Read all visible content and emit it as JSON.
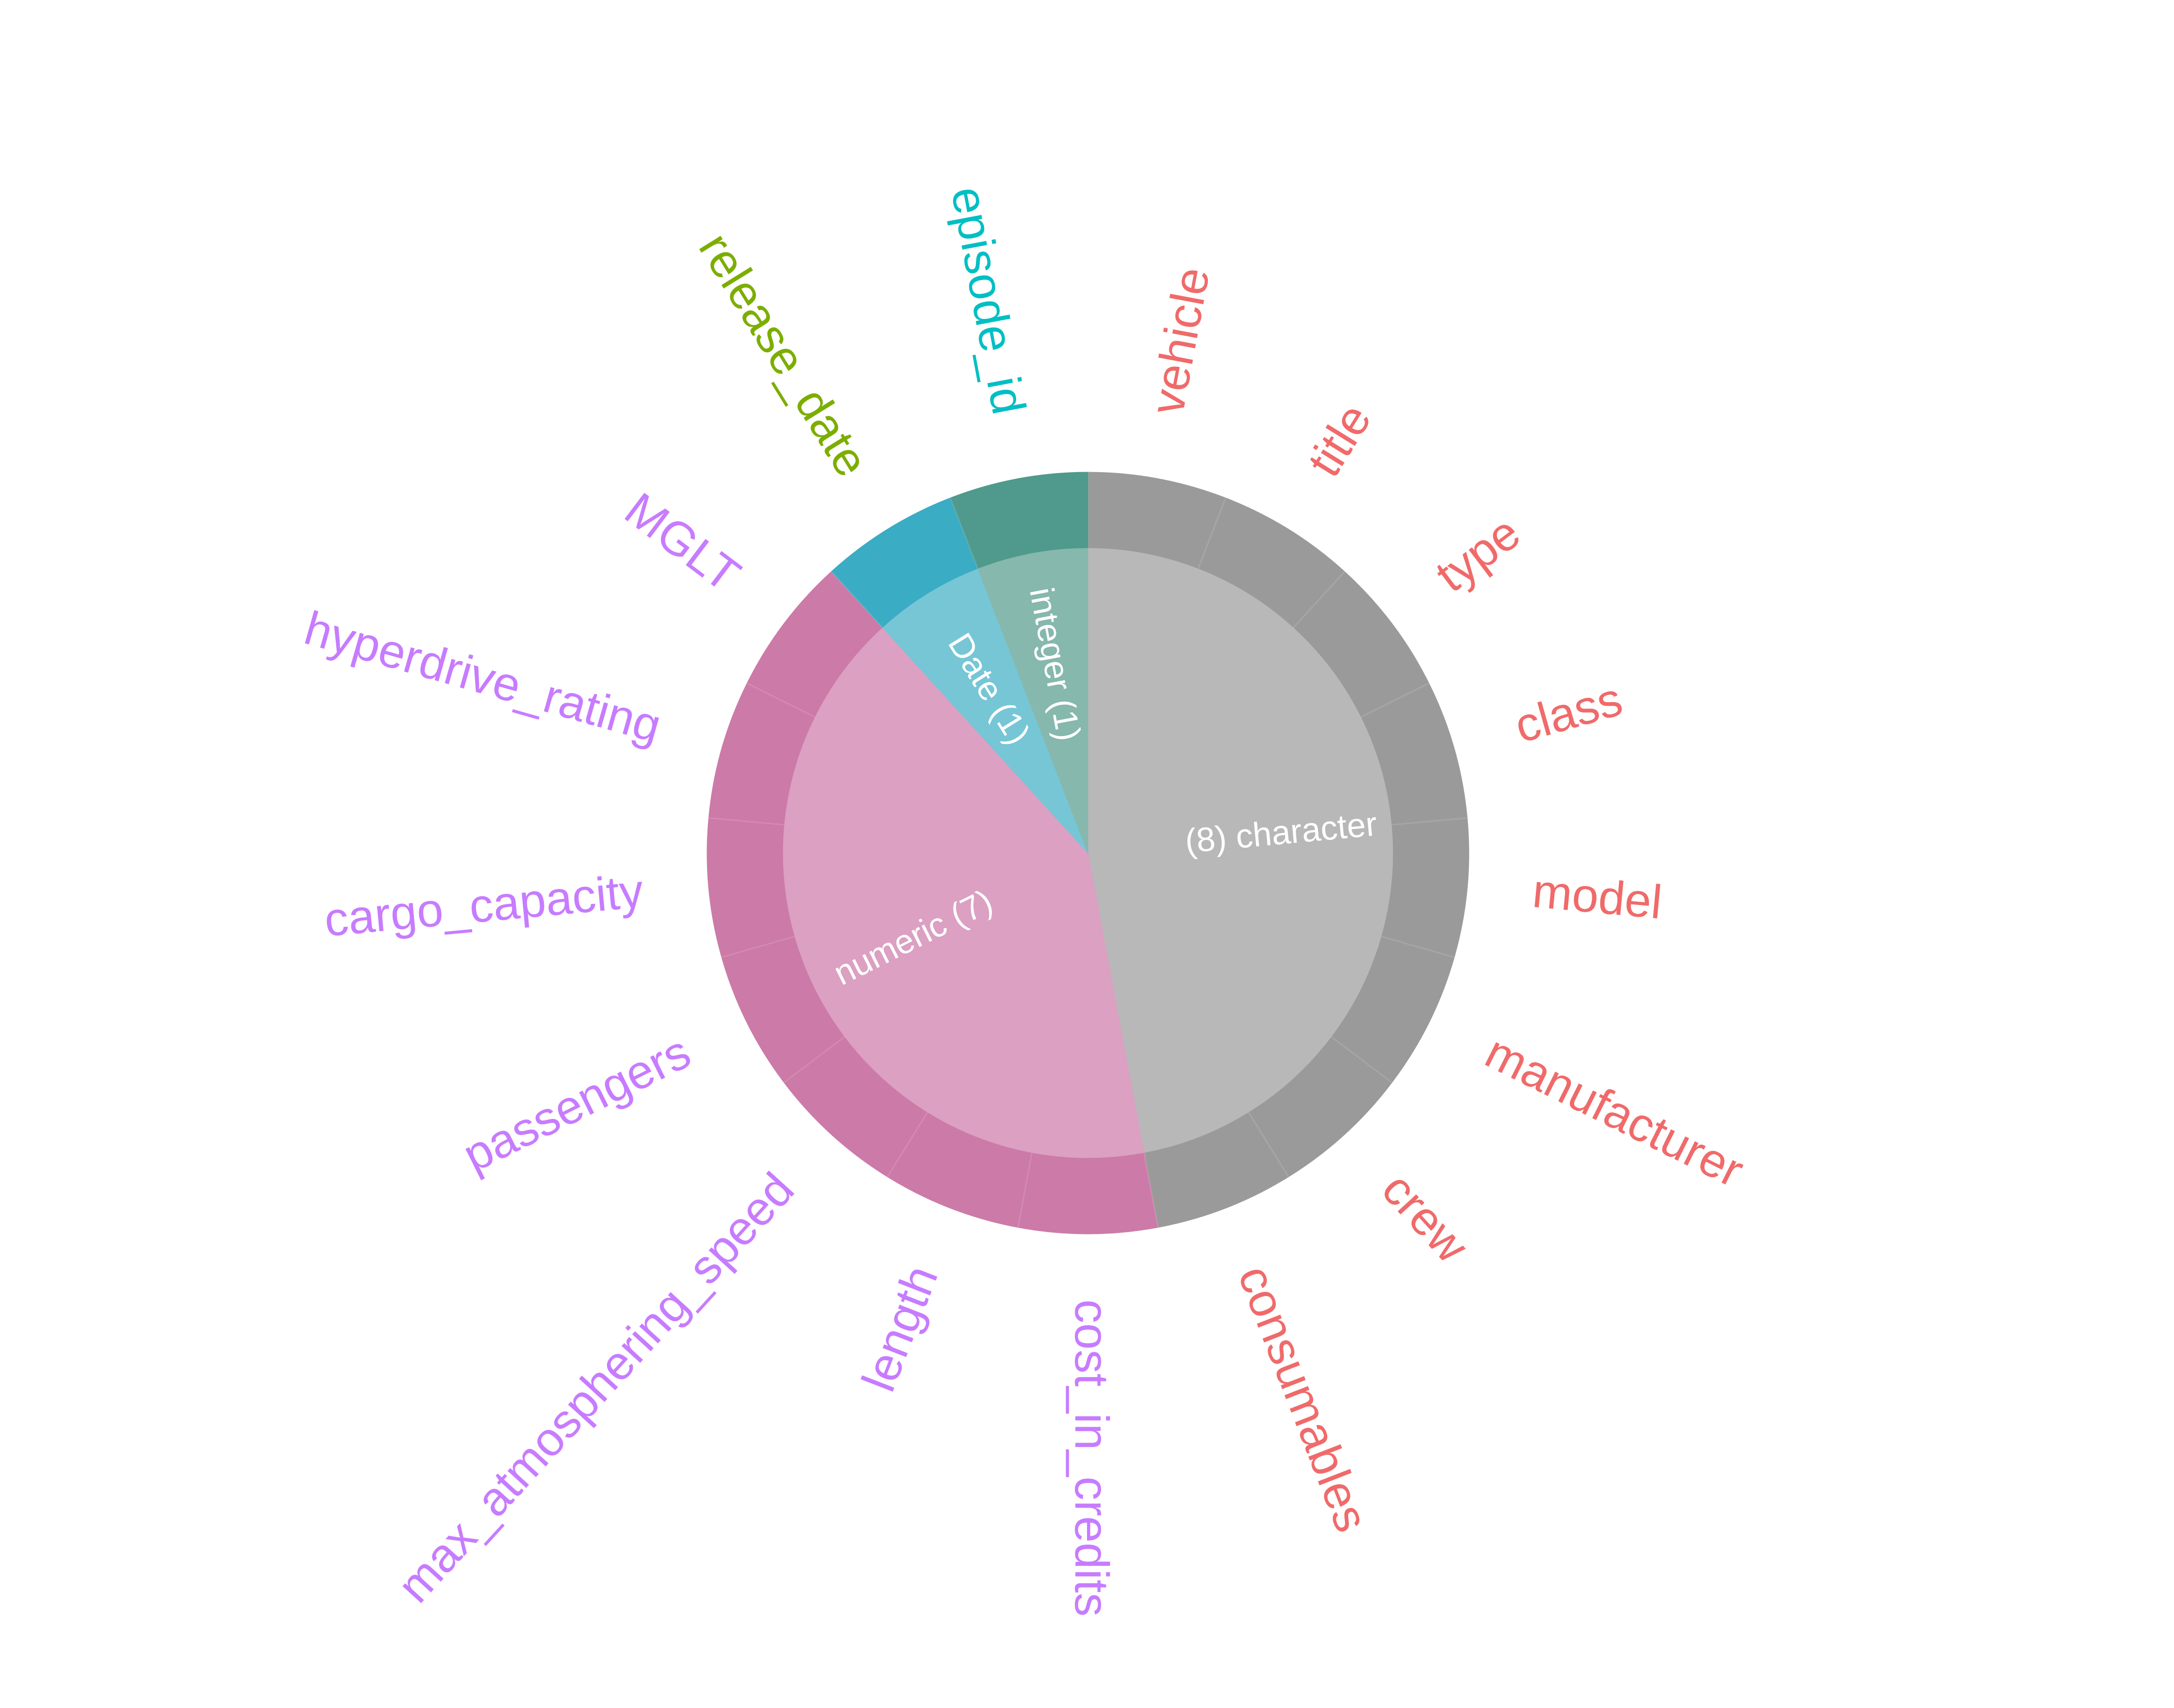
{
  "chart_data": {
    "type": "pie",
    "subtype": "nested-donut",
    "title": "",
    "inner_ring": [
      {
        "label": "(8) character",
        "category": "character",
        "count": 8,
        "color": "#b8b8b8",
        "text_color": "#ffffff"
      },
      {
        "label": "numeric (7)",
        "category": "numeric",
        "count": 7,
        "color": "#dba0c2",
        "text_color": "#ffffff"
      },
      {
        "label": "Date (1)",
        "category": "Date",
        "count": 1,
        "color": "#76c6d6",
        "text_color": "#ffffff"
      },
      {
        "label": "integer (1)",
        "category": "integer",
        "count": 1,
        "color": "#86b8ad",
        "text_color": "#ffffff"
      }
    ],
    "outer_ring": [
      {
        "label": "vehicle",
        "category": "character",
        "value": 1,
        "color": "#9a9a9a",
        "label_color": "#f06a6a"
      },
      {
        "label": "title",
        "category": "character",
        "value": 1,
        "color": "#9a9a9a",
        "label_color": "#f06a6a"
      },
      {
        "label": "type",
        "category": "character",
        "value": 1,
        "color": "#9a9a9a",
        "label_color": "#f06a6a"
      },
      {
        "label": "class",
        "category": "character",
        "value": 1,
        "color": "#9a9a9a",
        "label_color": "#f06a6a"
      },
      {
        "label": "model",
        "category": "character",
        "value": 1,
        "color": "#9a9a9a",
        "label_color": "#f06a6a"
      },
      {
        "label": "manufacturer",
        "category": "character",
        "value": 1,
        "color": "#9a9a9a",
        "label_color": "#f06a6a"
      },
      {
        "label": "crew",
        "category": "character",
        "value": 1,
        "color": "#9a9a9a",
        "label_color": "#f06a6a"
      },
      {
        "label": "consumables",
        "category": "character",
        "value": 1,
        "color": "#9a9a9a",
        "label_color": "#f06a6a"
      },
      {
        "label": "cost_in_credits",
        "category": "numeric",
        "value": 1,
        "color": "#cc7aa8",
        "label_color": "#c77cff"
      },
      {
        "label": "length",
        "category": "numeric",
        "value": 1,
        "color": "#cc7aa8",
        "label_color": "#c77cff"
      },
      {
        "label": "max_atmosphering_speed",
        "category": "numeric",
        "value": 1,
        "color": "#cc7aa8",
        "label_color": "#c77cff"
      },
      {
        "label": "passengers",
        "category": "numeric",
        "value": 1,
        "color": "#cc7aa8",
        "label_color": "#c77cff"
      },
      {
        "label": "cargo_capacity",
        "category": "numeric",
        "value": 1,
        "color": "#cc7aa8",
        "label_color": "#c77cff"
      },
      {
        "label": "hyperdrive_rating",
        "category": "numeric",
        "value": 1,
        "color": "#cc7aa8",
        "label_color": "#c77cff"
      },
      {
        "label": "MGLT",
        "category": "numeric",
        "value": 1,
        "color": "#cc7aa8",
        "label_color": "#c77cff"
      },
      {
        "label": "release_date",
        "category": "Date",
        "value": 1,
        "color": "#3aacc4",
        "label_color": "#7cae00"
      },
      {
        "label": "episode_id",
        "category": "integer",
        "value": 1,
        "color": "#4f9a8c",
        "label_color": "#00bfc4"
      }
    ],
    "legend": "none"
  }
}
